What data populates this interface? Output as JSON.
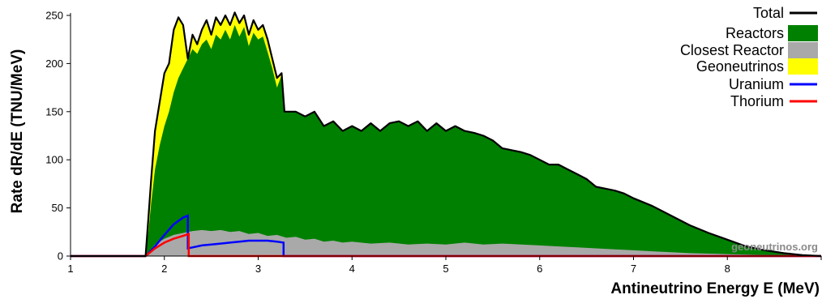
{
  "chart_data": {
    "type": "area",
    "xlabel": "Antineutrino Energy E (MeV)",
    "ylabel": "Rate dR/dE (TNU/MeV)",
    "xlim": [
      1,
      9
    ],
    "ylim": [
      0,
      250
    ],
    "xticks": [
      1,
      2,
      3,
      4,
      5,
      6,
      7,
      8
    ],
    "yticks": [
      0,
      50,
      100,
      150,
      200,
      250
    ],
    "legend_position": "top-right",
    "watermark": "geoneutrinos.org",
    "colors": {
      "total": "#000000",
      "reactors": "#008000",
      "closest_reactor": "#a9a9a9",
      "geoneutrinos": "#ffff00",
      "uranium": "#0000ff",
      "thorium": "#ff0000"
    },
    "series": [
      {
        "name": "Total",
        "x": [
          1.0,
          1.8,
          1.83,
          1.86,
          1.9,
          1.95,
          2.0,
          2.05,
          2.1,
          2.15,
          2.2,
          2.25,
          2.3,
          2.35,
          2.4,
          2.45,
          2.5,
          2.55,
          2.6,
          2.65,
          2.7,
          2.75,
          2.8,
          2.85,
          2.9,
          2.95,
          3.0,
          3.05,
          3.1,
          3.15,
          3.2,
          3.25,
          3.28,
          3.35,
          3.4,
          3.5,
          3.6,
          3.7,
          3.8,
          3.9,
          4.0,
          4.1,
          4.2,
          4.3,
          4.4,
          4.5,
          4.6,
          4.7,
          4.8,
          4.9,
          5.0,
          5.1,
          5.2,
          5.3,
          5.4,
          5.5,
          5.6,
          5.7,
          5.8,
          5.9,
          6.0,
          6.1,
          6.2,
          6.3,
          6.4,
          6.5,
          6.6,
          6.7,
          6.8,
          6.9,
          7.0,
          7.2,
          7.4,
          7.6,
          7.8,
          8.0,
          8.2,
          8.4,
          8.6,
          8.8,
          9.0
        ],
        "values": [
          0,
          0,
          40,
          80,
          130,
          160,
          190,
          200,
          235,
          248,
          240,
          205,
          230,
          220,
          235,
          245,
          230,
          248,
          240,
          250,
          240,
          253,
          242,
          250,
          230,
          245,
          235,
          240,
          225,
          205,
          185,
          190,
          150,
          150,
          150,
          145,
          150,
          135,
          140,
          130,
          135,
          130,
          138,
          130,
          138,
          140,
          135,
          140,
          130,
          138,
          130,
          135,
          130,
          128,
          125,
          120,
          112,
          110,
          108,
          105,
          100,
          95,
          95,
          90,
          85,
          80,
          72,
          70,
          68,
          65,
          60,
          52,
          42,
          32,
          24,
          17,
          10,
          6,
          3,
          1,
          0
        ]
      },
      {
        "name": "Reactors",
        "x": [
          1.0,
          1.8,
          1.83,
          1.86,
          1.9,
          1.95,
          2.0,
          2.05,
          2.1,
          2.15,
          2.2,
          2.25,
          2.3,
          2.35,
          2.4,
          2.45,
          2.5,
          2.55,
          2.6,
          2.65,
          2.7,
          2.75,
          2.8,
          2.85,
          2.9,
          2.95,
          3.0,
          3.05,
          3.1,
          3.15,
          3.2,
          3.25,
          3.28,
          3.35,
          3.4,
          3.5,
          3.6,
          3.7,
          3.8,
          3.9,
          4.0,
          4.1,
          4.2,
          4.3,
          4.4,
          4.5,
          4.6,
          4.7,
          4.8,
          4.9,
          5.0,
          5.1,
          5.2,
          5.3,
          5.4,
          5.5,
          5.6,
          5.7,
          5.8,
          5.9,
          6.0,
          6.1,
          6.2,
          6.3,
          6.4,
          6.5,
          6.6,
          6.7,
          6.8,
          6.9,
          7.0,
          7.2,
          7.4,
          7.6,
          7.8,
          8.0,
          8.2,
          8.4,
          8.6,
          8.8,
          9.0
        ],
        "values": [
          0,
          0,
          25,
          55,
          90,
          115,
          135,
          150,
          170,
          185,
          195,
          205,
          215,
          210,
          220,
          225,
          215,
          230,
          225,
          235,
          225,
          240,
          228,
          238,
          218,
          232,
          225,
          228,
          212,
          195,
          175,
          188,
          150,
          150,
          150,
          145,
          150,
          135,
          140,
          130,
          135,
          130,
          138,
          130,
          138,
          140,
          135,
          140,
          130,
          138,
          130,
          135,
          130,
          128,
          125,
          120,
          112,
          110,
          108,
          105,
          100,
          95,
          95,
          90,
          85,
          80,
          72,
          70,
          68,
          65,
          60,
          52,
          42,
          32,
          24,
          17,
          10,
          6,
          3,
          1,
          0
        ]
      },
      {
        "name": "Closest Reactor",
        "x": [
          1.0,
          1.8,
          1.9,
          2.0,
          2.1,
          2.2,
          2.3,
          2.4,
          2.5,
          2.6,
          2.7,
          2.8,
          2.9,
          3.0,
          3.1,
          3.2,
          3.3,
          3.4,
          3.5,
          3.6,
          3.7,
          3.8,
          3.9,
          4.0,
          4.2,
          4.4,
          4.6,
          4.8,
          5.0,
          5.2,
          5.4,
          5.6,
          5.8,
          6.0,
          6.2,
          6.4,
          6.6,
          6.8,
          7.0,
          7.2,
          7.4,
          7.6,
          7.8,
          8.0,
          8.4,
          8.8,
          9.0
        ],
        "values": [
          0,
          0,
          12,
          18,
          22,
          24,
          26,
          27,
          26,
          27,
          25,
          26,
          23,
          24,
          21,
          22,
          19,
          20,
          17,
          18,
          15,
          16,
          14,
          15,
          13,
          14,
          12,
          13,
          12,
          14,
          12,
          13,
          12,
          11,
          10,
          9,
          8,
          7,
          6,
          5,
          4,
          3,
          2.5,
          2,
          1,
          0.5,
          0
        ]
      },
      {
        "name": "Geoneutrinos",
        "x": [
          1.0,
          1.8,
          1.83,
          1.86,
          1.9,
          1.95,
          2.0,
          2.05,
          2.1,
          2.15,
          2.2,
          2.25,
          2.3,
          2.35,
          2.4,
          2.45,
          2.5,
          2.55,
          2.6,
          2.65,
          2.7,
          2.75,
          2.8,
          2.85,
          2.9,
          2.95,
          3.0,
          3.05,
          3.1,
          3.15,
          3.2,
          3.25,
          3.28,
          9.0
        ],
        "values": [
          0,
          0,
          15,
          25,
          40,
          45,
          55,
          50,
          65,
          63,
          45,
          0,
          15,
          10,
          15,
          20,
          15,
          18,
          15,
          15,
          15,
          13,
          14,
          12,
          12,
          13,
          10,
          12,
          13,
          10,
          10,
          2,
          0,
          0
        ]
      },
      {
        "name": "Uranium",
        "x": [
          1.0,
          1.8,
          1.9,
          2.0,
          2.1,
          2.2,
          2.25,
          2.25,
          2.3,
          2.4,
          2.5,
          2.6,
          2.7,
          2.8,
          2.9,
          3.0,
          3.1,
          3.2,
          3.27,
          3.27,
          9.0
        ],
        "values": [
          0,
          0,
          10,
          22,
          33,
          40,
          42,
          8,
          9,
          11,
          12,
          13,
          14,
          15,
          16,
          16,
          16,
          15,
          14,
          0,
          0
        ]
      },
      {
        "name": "Thorium",
        "x": [
          1.0,
          1.8,
          1.9,
          2.0,
          2.1,
          2.2,
          2.26,
          2.26,
          9.0
        ],
        "values": [
          0,
          0,
          8,
          14,
          18,
          21,
          23,
          0,
          0
        ]
      }
    ]
  }
}
